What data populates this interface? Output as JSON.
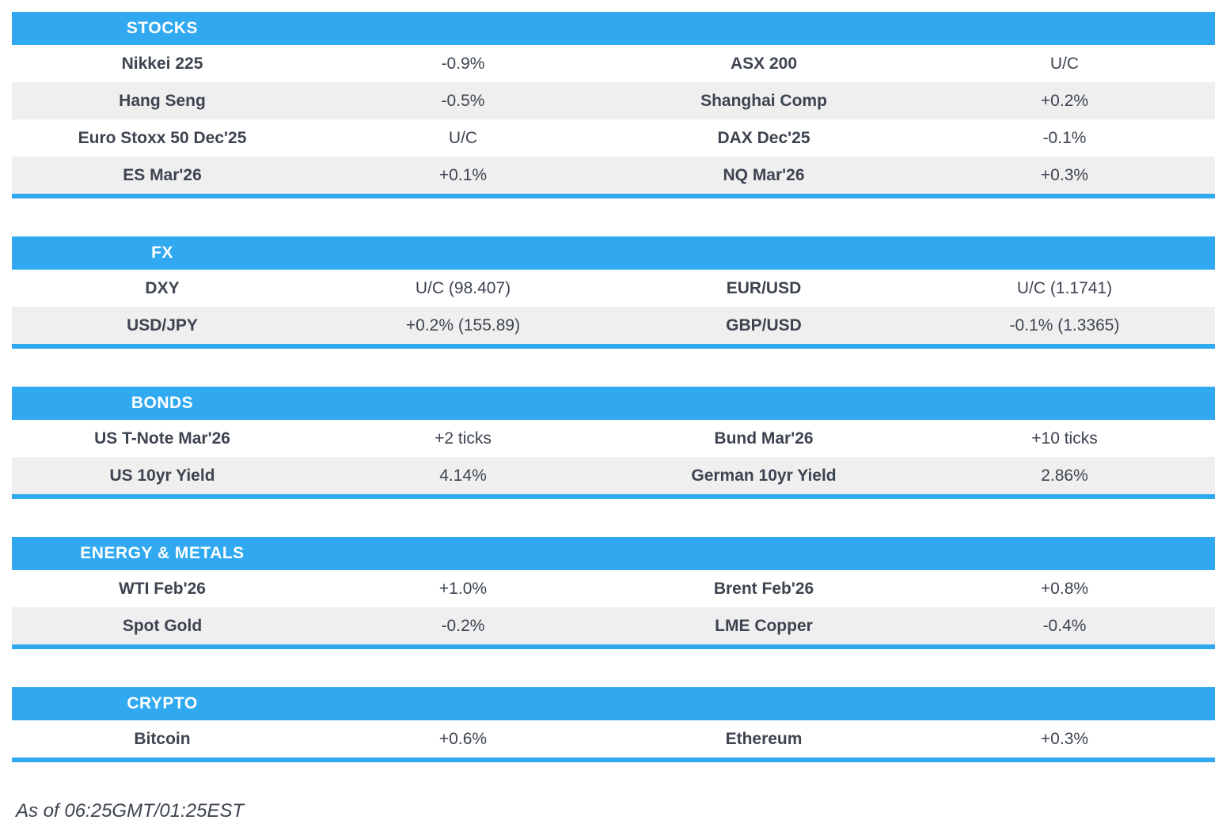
{
  "colors": {
    "accent_blue": "#31a9f0",
    "row_alt_gray": "#efefef",
    "text_dark": "#3d4450",
    "header_text": "#ffffff"
  },
  "footer": {
    "timestamp": "As of 06:25GMT/01:25EST"
  },
  "sections": [
    {
      "title": "STOCKS",
      "rows": [
        {
          "left_label": "Nikkei 225",
          "left_value": "-0.9%",
          "right_label": "ASX 200",
          "right_value": "U/C"
        },
        {
          "left_label": "Hang Seng",
          "left_value": "-0.5%",
          "right_label": "Shanghai Comp",
          "right_value": "+0.2%"
        },
        {
          "left_label": "Euro Stoxx 50 Dec'25",
          "left_value": "U/C",
          "right_label": "DAX Dec'25",
          "right_value": "-0.1%"
        },
        {
          "left_label": "ES Mar'26",
          "left_value": "+0.1%",
          "right_label": "NQ Mar'26",
          "right_value": "+0.3%"
        }
      ]
    },
    {
      "title": "FX",
      "rows": [
        {
          "left_label": "DXY",
          "left_value": "U/C (98.407)",
          "right_label": "EUR/USD",
          "right_value": "U/C (1.1741)"
        },
        {
          "left_label": "USD/JPY",
          "left_value": "+0.2% (155.89)",
          "right_label": "GBP/USD",
          "right_value": "-0.1% (1.3365)"
        }
      ]
    },
    {
      "title": "BONDS",
      "rows": [
        {
          "left_label": "US T-Note Mar'26",
          "left_value": "+2 ticks",
          "right_label": "Bund Mar'26",
          "right_value": "+10 ticks"
        },
        {
          "left_label": "US 10yr Yield",
          "left_value": "4.14%",
          "right_label": "German 10yr Yield",
          "right_value": "2.86%"
        }
      ]
    },
    {
      "title": "ENERGY & METALS",
      "rows": [
        {
          "left_label": "WTI Feb'26",
          "left_value": "+1.0%",
          "right_label": "Brent Feb'26",
          "right_value": "+0.8%"
        },
        {
          "left_label": "Spot Gold",
          "left_value": "-0.2%",
          "right_label": "LME Copper",
          "right_value": "-0.4%"
        }
      ]
    },
    {
      "title": "CRYPTO",
      "rows": [
        {
          "left_label": "Bitcoin",
          "left_value": "+0.6%",
          "right_label": "Ethereum",
          "right_value": "+0.3%"
        }
      ]
    }
  ]
}
